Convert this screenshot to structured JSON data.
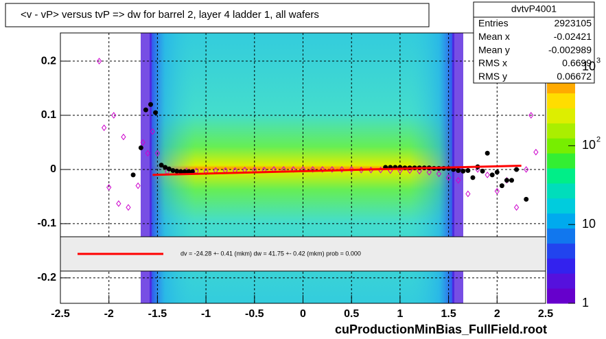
{
  "chart_data": {
    "type": "scatter",
    "title": "<v - vP>       versus  tvP =>  dw for barrel 2, layer 4 ladder 1, all wafers",
    "footer": "cuProductionMinBias_FullField.root",
    "xlim": [
      -2.5,
      2.5
    ],
    "ylim": [
      -0.247,
      0.252
    ],
    "xticks": [
      -2.5,
      -2,
      -1.5,
      -1,
      -0.5,
      0,
      0.5,
      1,
      1.5,
      2,
      2.5
    ],
    "yticks": [
      -0.2,
      -0.1,
      0,
      0.1,
      0.2
    ],
    "grid": true,
    "stats": {
      "name": "dvtvP4001",
      "rows": [
        [
          "Entries",
          "2923105"
        ],
        [
          "Mean x",
          "-0.02421"
        ],
        [
          "Mean y",
          "-0.002989"
        ],
        [
          "RMS x",
          "0.6699"
        ],
        [
          "RMS y",
          "0.06672"
        ]
      ]
    },
    "fit_text": "dv =  -24.28 +-  0.41 (mkm) dw =   41.75 +-  0.42 (mkm) prob = 0.000",
    "zlim": [
      1,
      2700
    ],
    "zlog": true,
    "zticks": [
      1,
      10,
      {
        "value": 100,
        "label": "10",
        "exponent": "2"
      },
      {
        "value": 1000,
        "label": "10",
        "exponent": "3"
      }
    ],
    "series": [
      {
        "color": "#cc00cc",
        "marker": "open-diamond",
        "x": [
          -2.1,
          -2.05,
          -2.0,
          -1.95,
          -1.9,
          -1.85,
          -1.8,
          -1.7,
          -1.65,
          -1.6,
          -1.55,
          -1.5,
          -1.4,
          -1.3,
          -1.2,
          -1.1,
          -1.0,
          -0.9,
          -0.8,
          -0.7,
          -0.6,
          -0.5,
          -0.4,
          -0.3,
          -0.2,
          -0.1,
          0,
          0.1,
          0.2,
          0.3,
          0.4,
          0.5,
          0.6,
          0.7,
          0.8,
          0.9,
          1.0,
          1.1,
          1.2,
          1.3,
          1.4,
          1.5,
          1.6,
          1.7,
          1.8,
          1.9,
          2.0,
          2.1,
          2.2,
          2.3,
          2.35,
          2.4
        ],
        "values": [
          0.2,
          0.077,
          -0.033,
          0.1,
          -0.063,
          0.06,
          -0.07,
          -0.03,
          0.05,
          0.03,
          0.07,
          0.03,
          -0.004,
          -0.004,
          -0.003,
          -0.003,
          -0.003,
          -0.002,
          -0.002,
          -0.002,
          -0.001,
          -0.001,
          -0.001,
          0,
          0,
          0,
          0,
          0,
          0,
          0,
          0,
          0,
          -0.001,
          -0.001,
          -0.001,
          -0.002,
          -0.002,
          -0.002,
          -0.003,
          -0.005,
          -0.008,
          -0.015,
          -0.02,
          -0.045,
          0,
          -0.01,
          -0.04,
          -0.02,
          -0.07,
          0,
          0.1,
          0.032
        ]
      },
      {
        "color": "#000000",
        "marker": "dot",
        "x": [
          -1.75,
          -1.67,
          -1.62,
          -1.57,
          -1.52,
          -1.46,
          -1.42,
          -1.38,
          -1.34,
          -1.3,
          -1.26,
          -1.22,
          -1.18,
          -1.14,
          0.85,
          0.9,
          0.95,
          1.0,
          1.05,
          1.1,
          1.15,
          1.2,
          1.25,
          1.3,
          1.35,
          1.4,
          1.45,
          1.5,
          1.55,
          1.6,
          1.65,
          1.7,
          1.75,
          1.8,
          1.85,
          1.9,
          1.95,
          2.0,
          2.05,
          2.1,
          2.15,
          2.2,
          2.3
        ],
        "values": [
          -0.01,
          0.04,
          0.11,
          0.12,
          0.105,
          0.008,
          0.004,
          0.001,
          -0.002,
          -0.003,
          -0.004,
          -0.004,
          -0.004,
          -0.004,
          0.004,
          0.004,
          0.004,
          0.004,
          0.003,
          0.003,
          0.003,
          0.003,
          0.003,
          0.003,
          0.002,
          0.002,
          0.002,
          0.002,
          0,
          -0.002,
          -0.003,
          -0.002,
          -0.015,
          0.005,
          -0.003,
          0.03,
          -0.01,
          -0.005,
          -0.03,
          -0.02,
          -0.02,
          0,
          -0.055
        ]
      },
      {
        "color": "#ff0000",
        "marker": "line",
        "x": [
          -1.55,
          2.25
        ],
        "values": [
          -0.01,
          0.007
        ]
      }
    ]
  }
}
